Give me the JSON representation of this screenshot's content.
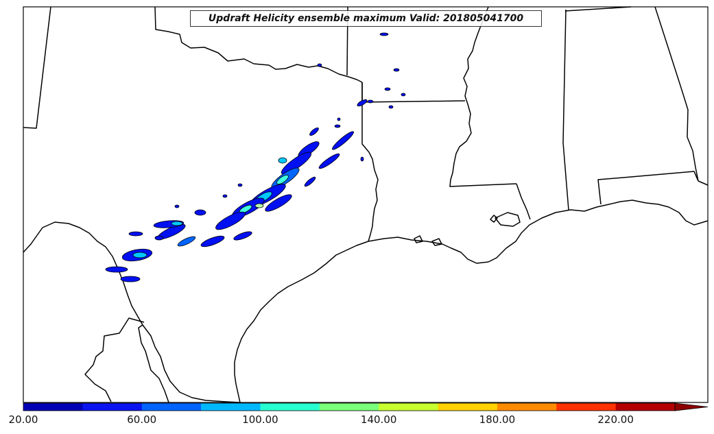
{
  "title": "Updraft Helicity ensemble maximum Valid: 201805041700",
  "colorbar": {
    "colors": [
      "#0000b4",
      "#0a14f0",
      "#0064ff",
      "#00b8ff",
      "#28ffd0",
      "#7aff7a",
      "#c8ff30",
      "#ffd200",
      "#ff8c00",
      "#ff3200",
      "#b40000"
    ],
    "extend_color": "#8c0000",
    "tick_labels": [
      "20.00",
      "60.00",
      "100.00",
      "140.00",
      "180.00",
      "220.00"
    ]
  },
  "palette": {
    "outline": "#000000",
    "blue": "#0010f0",
    "mid": "#0064ff",
    "cyan": "#00c8ff",
    "aqua": "#40ffe0",
    "light": "#b8ffb0"
  }
}
